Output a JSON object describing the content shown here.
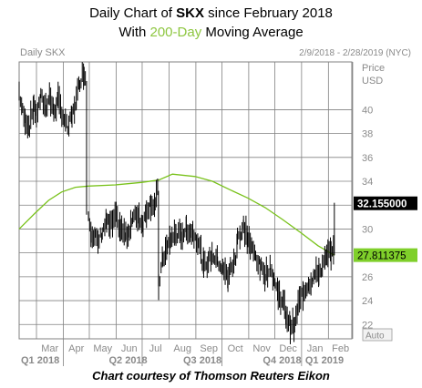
{
  "title_line1": {
    "prefix": "Daily Chart of ",
    "ticker": "SKX",
    "suffix": " since February 2018"
  },
  "title_line2": {
    "prefix": "With ",
    "highlight": "200-Day",
    "suffix": " Moving Average"
  },
  "footer": "Chart courtesy of Thomson Reuters Eikon",
  "colors": {
    "price": "#000000",
    "ma": "#79c21b",
    "grid": "#808080",
    "price_badge": "#000000",
    "ma_badge": "#7fcf2a"
  },
  "chart_data": {
    "type": "ohlc",
    "series_label": "Daily SKX",
    "date_range_label": "2/9/2018 - 2/28/2019 (NYC)",
    "price_header": [
      "Price",
      "USD"
    ],
    "auto_label": "Auto",
    "ylim": [
      20.8,
      44
    ],
    "y_ticks": [
      22,
      24,
      26,
      28,
      30,
      32,
      34,
      36,
      38,
      40
    ],
    "grid": true,
    "x_month_labels": [
      "Mar",
      "Apr",
      "May",
      "Jun",
      "Jul",
      "Aug",
      "Sep",
      "Oct",
      "Nov",
      "Dec",
      "Jan",
      "Feb"
    ],
    "x_quarter_labels": [
      "Q1 2018",
      "Q2 2018",
      "Q3 2018",
      "Q4 2018",
      "Q1 2019"
    ],
    "last_price": "32.155000",
    "last_ma": "27.811375",
    "price_series": [
      [
        "2018-02-09",
        41.5
      ],
      [
        "2018-02-13",
        39.8
      ],
      [
        "2018-02-16",
        39.2
      ],
      [
        "2018-02-21",
        38.6
      ],
      [
        "2018-02-26",
        40.5
      ],
      [
        "2018-03-01",
        39.5
      ],
      [
        "2018-03-06",
        41.0
      ],
      [
        "2018-03-12",
        40.2
      ],
      [
        "2018-03-16",
        41.2
      ],
      [
        "2018-03-21",
        39.8
      ],
      [
        "2018-03-26",
        40.8
      ],
      [
        "2018-04-02",
        39.2
      ],
      [
        "2018-04-06",
        38.4
      ],
      [
        "2018-04-11",
        39.4
      ],
      [
        "2018-04-16",
        40.8
      ],
      [
        "2018-04-20",
        42.4
      ],
      [
        "2018-04-25",
        43.2
      ],
      [
        "2018-04-27",
        42.4
      ],
      [
        "2018-04-30",
        31.2
      ],
      [
        "2018-05-03",
        29.8
      ],
      [
        "2018-05-08",
        29.4
      ],
      [
        "2018-05-11",
        28.8
      ],
      [
        "2018-05-16",
        29.8
      ],
      [
        "2018-05-21",
        30.6
      ],
      [
        "2018-05-25",
        30.2
      ],
      [
        "2018-06-01",
        31.0
      ],
      [
        "2018-06-06",
        30.0
      ],
      [
        "2018-06-12",
        29.4
      ],
      [
        "2018-06-15",
        29.8
      ],
      [
        "2018-06-20",
        30.8
      ],
      [
        "2018-06-26",
        31.2
      ],
      [
        "2018-07-02",
        30.4
      ],
      [
        "2018-07-06",
        31.6
      ],
      [
        "2018-07-11",
        32.2
      ],
      [
        "2018-07-16",
        32.0
      ],
      [
        "2018-07-19",
        33.2
      ],
      [
        "2018-07-20",
        25.2
      ],
      [
        "2018-07-25",
        27.6
      ],
      [
        "2018-07-30",
        28.4
      ],
      [
        "2018-08-03",
        29.2
      ],
      [
        "2018-08-09",
        29.6
      ],
      [
        "2018-08-15",
        29.4
      ],
      [
        "2018-08-21",
        30.0
      ],
      [
        "2018-08-27",
        29.8
      ],
      [
        "2018-09-04",
        29.0
      ],
      [
        "2018-09-10",
        26.8
      ],
      [
        "2018-09-14",
        27.2
      ],
      [
        "2018-09-20",
        27.8
      ],
      [
        "2018-09-26",
        27.4
      ],
      [
        "2018-10-02",
        26.6
      ],
      [
        "2018-10-08",
        26.0
      ],
      [
        "2018-10-12",
        26.8
      ],
      [
        "2018-10-17",
        27.4
      ],
      [
        "2018-10-19",
        29.6
      ],
      [
        "2018-10-23",
        29.4
      ],
      [
        "2018-10-26",
        30.2
      ],
      [
        "2018-10-31",
        29.2
      ],
      [
        "2018-11-05",
        28.2
      ],
      [
        "2018-11-09",
        27.8
      ],
      [
        "2018-11-14",
        26.8
      ],
      [
        "2018-11-20",
        26.2
      ],
      [
        "2018-11-26",
        26.8
      ],
      [
        "2018-11-30",
        25.8
      ],
      [
        "2018-12-05",
        24.6
      ],
      [
        "2018-12-11",
        23.8
      ],
      [
        "2018-12-14",
        22.8
      ],
      [
        "2018-12-19",
        22.0
      ],
      [
        "2018-12-24",
        21.8
      ],
      [
        "2018-12-28",
        23.6
      ],
      [
        "2019-01-03",
        24.8
      ],
      [
        "2019-01-09",
        25.4
      ],
      [
        "2019-01-15",
        26.0
      ],
      [
        "2019-01-21",
        26.4
      ],
      [
        "2019-01-25",
        26.8
      ],
      [
        "2019-01-30",
        27.6
      ],
      [
        "2019-02-04",
        28.2
      ],
      [
        "2019-02-07",
        27.8
      ],
      [
        "2019-02-08",
        32.2
      ]
    ],
    "ma_series": [
      [
        "2018-02-09",
        30.0
      ],
      [
        "2018-02-27",
        31.3
      ],
      [
        "2018-03-15",
        32.4
      ],
      [
        "2018-03-30",
        33.1
      ],
      [
        "2018-04-15",
        33.5
      ],
      [
        "2018-04-30",
        33.6
      ],
      [
        "2018-05-31",
        33.7
      ],
      [
        "2018-06-30",
        33.9
      ],
      [
        "2018-07-20",
        34.1
      ],
      [
        "2018-08-05",
        34.6
      ],
      [
        "2018-08-31",
        34.4
      ],
      [
        "2018-09-20",
        34.0
      ],
      [
        "2018-10-10",
        33.3
      ],
      [
        "2018-10-31",
        32.6
      ],
      [
        "2018-11-20",
        31.8
      ],
      [
        "2018-12-10",
        30.8
      ],
      [
        "2018-12-31",
        29.7
      ],
      [
        "2019-01-20",
        28.6
      ],
      [
        "2019-02-08",
        27.8
      ]
    ]
  }
}
